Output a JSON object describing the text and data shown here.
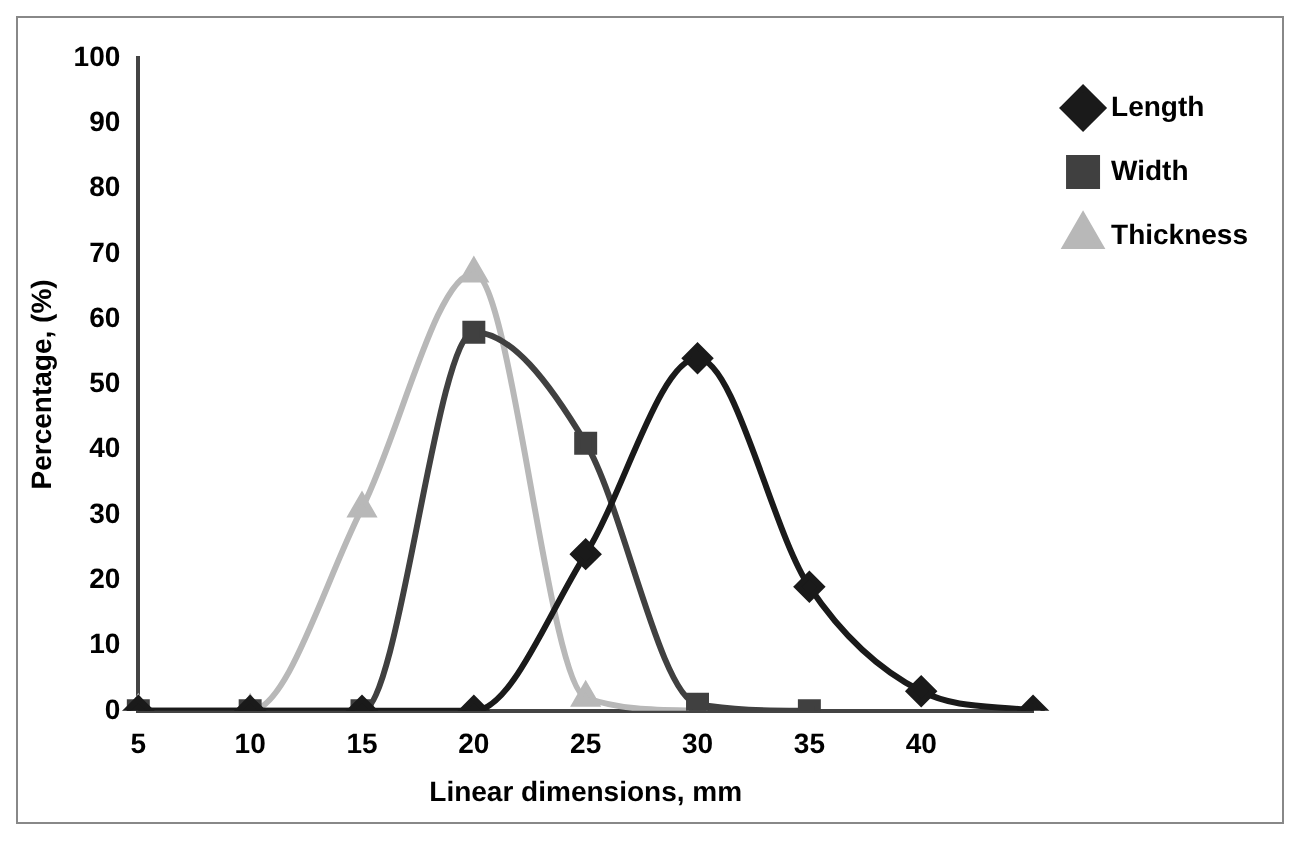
{
  "chart_data": {
    "type": "line",
    "xlabel": "Linear dimensions, mm",
    "ylabel": "Percentage, (%)",
    "categories": [
      "5",
      "10",
      "15",
      "20",
      "25",
      "30",
      "35",
      "40",
      null
    ],
    "series": [
      {
        "name": "Length",
        "color": "#1a1a1a",
        "values": [
          0,
          0,
          0,
          0,
          24,
          54,
          19,
          3,
          0
        ],
        "marker": "diamond"
      },
      {
        "name": "Width",
        "color": "#404040",
        "values": [
          0,
          0,
          0,
          58,
          41,
          1,
          0,
          null,
          null
        ],
        "marker": "square"
      },
      {
        "name": "Thickness",
        "color": "#b8b8b8",
        "values": [
          0,
          0,
          31,
          67,
          2,
          0,
          null,
          null,
          null
        ],
        "marker": "triangle"
      }
    ],
    "ylim": [
      0,
      100
    ],
    "yticks": [
      0,
      10,
      20,
      30,
      40,
      50,
      60,
      70,
      80,
      90,
      100
    ],
    "grid": false,
    "legend": "top right",
    "line_style": "solid"
  }
}
